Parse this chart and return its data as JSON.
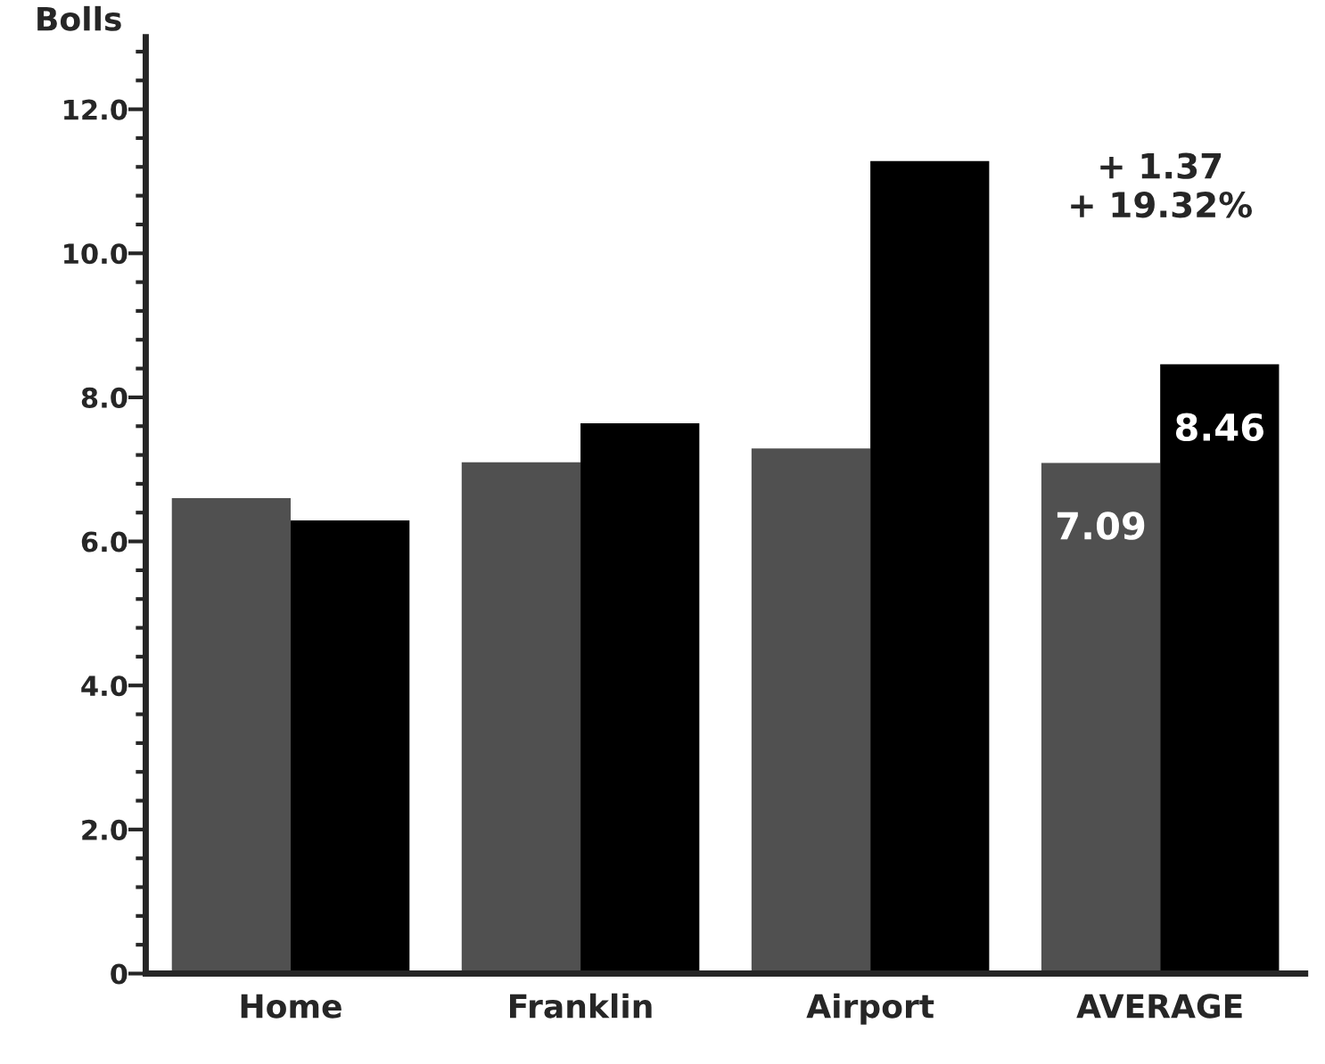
{
  "chart_data": {
    "type": "bar",
    "ylabel": "Bolls",
    "categories": [
      "Home",
      "Franklin",
      "Airport",
      "AVERAGE"
    ],
    "series": [
      {
        "color": "#505050",
        "values": [
          6.6,
          7.1,
          7.29,
          7.09
        ],
        "value_labels": [
          null,
          null,
          null,
          "7.09"
        ]
      },
      {
        "color": "#000000",
        "values": [
          6.29,
          7.64,
          11.28,
          8.46
        ],
        "value_labels": [
          null,
          null,
          null,
          "8.46"
        ]
      }
    ],
    "annotations": [
      "+ 1.37\n+ 19.32%"
    ],
    "ylim": [
      0,
      13.0
    ],
    "yticks": [
      0,
      {
        "value": 0.4,
        "label": null
      },
      {
        "value": 0.8,
        "label": null
      },
      {
        "value": 1.2,
        "label": null
      },
      {
        "value": 1.6,
        "label": null
      },
      {
        "value": 2,
        "label": "2.0"
      },
      {
        "value": 2.4,
        "label": null
      },
      {
        "value": 2.8,
        "label": null
      },
      {
        "value": 3.2,
        "label": null
      },
      {
        "value": 3.6,
        "label": null
      },
      {
        "value": 4,
        "label": "4.0"
      },
      {
        "value": 4.4,
        "label": null
      },
      {
        "value": 4.8,
        "label": null
      },
      {
        "value": 5.2,
        "label": null
      },
      {
        "value": 5.6,
        "label": null
      },
      {
        "value": 6,
        "label": "6.0"
      },
      {
        "value": 6.4,
        "label": null
      },
      {
        "value": 6.8,
        "label": null
      },
      {
        "value": 7.2,
        "label": null
      },
      {
        "value": 7.6,
        "label": null
      },
      {
        "value": 8,
        "label": "8.0"
      },
      {
        "value": 8.4,
        "label": null
      },
      {
        "value": 8.8,
        "label": null
      },
      {
        "value": 9.2,
        "label": null
      },
      {
        "value": 9.6,
        "label": null
      },
      {
        "value": 10,
        "label": "10.0"
      },
      {
        "value": 10.4,
        "label": null
      },
      {
        "value": 10.8,
        "label": null
      },
      {
        "value": 11.2,
        "label": null
      },
      {
        "value": 11.6,
        "label": null
      },
      {
        "value": 12,
        "label": "12.0"
      },
      {
        "value": 12.4,
        "label": null
      },
      {
        "value": 12.8,
        "label": null
      }
    ],
    "grid": false,
    "legend": false
  }
}
